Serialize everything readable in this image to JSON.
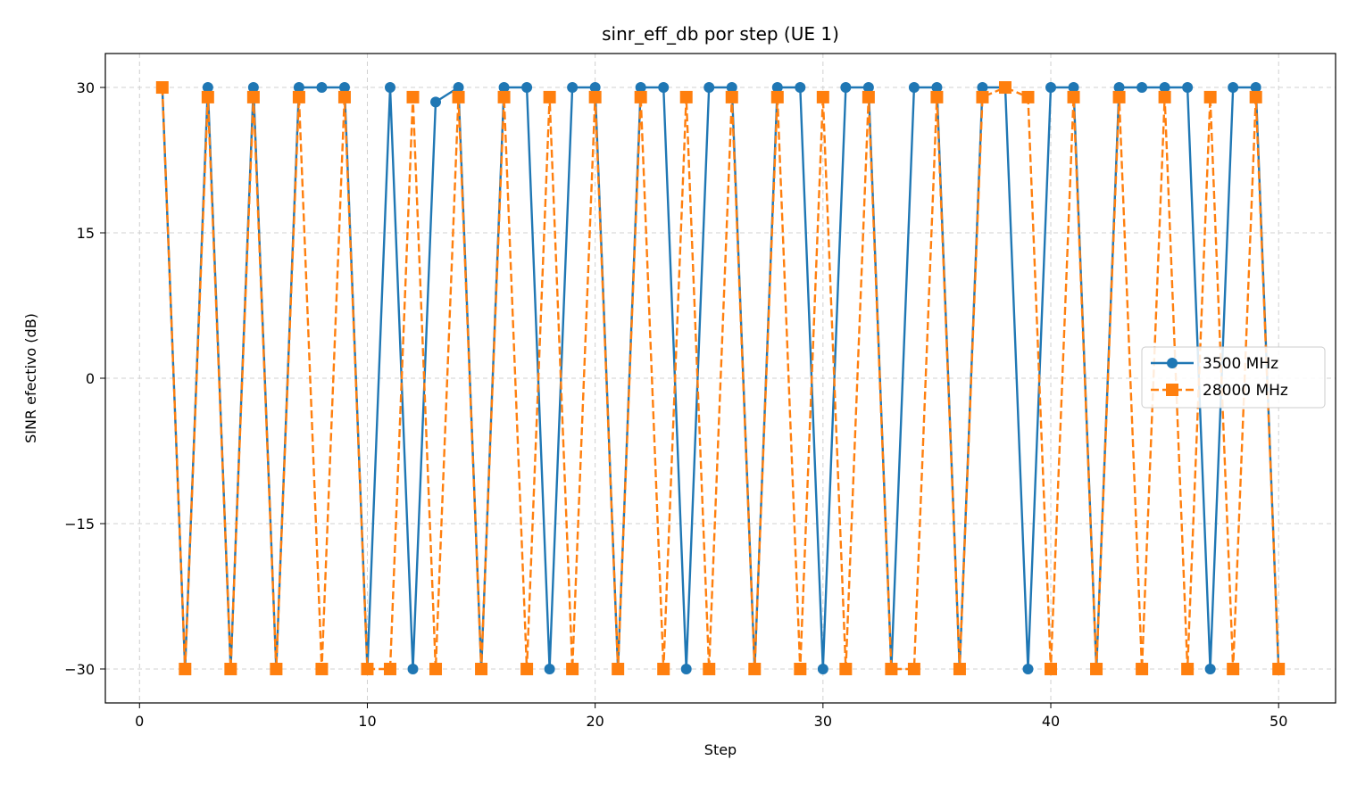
{
  "chart_data": {
    "type": "line",
    "title": "sinr_eff_db por step (UE 1)",
    "xlabel": "Step",
    "ylabel": "SINR efectivo (dB)",
    "xlim": [
      -1.5,
      52.5
    ],
    "ylim": [
      -33.5,
      33.5
    ],
    "xticks": [
      0,
      10,
      20,
      30,
      40,
      50
    ],
    "yticks": [
      -30,
      -15,
      0,
      15,
      30
    ],
    "ytick_labels": [
      "−30",
      "−15",
      "0",
      "15",
      "30"
    ],
    "grid": true,
    "legend_position": "right",
    "x": [
      1,
      2,
      3,
      4,
      5,
      6,
      7,
      8,
      9,
      10,
      11,
      12,
      13,
      14,
      15,
      16,
      17,
      18,
      19,
      20,
      21,
      22,
      23,
      24,
      25,
      26,
      27,
      28,
      29,
      30,
      31,
      32,
      33,
      34,
      35,
      36,
      37,
      38,
      39,
      40,
      41,
      42,
      43,
      44,
      45,
      46,
      47,
      48,
      49,
      50
    ],
    "series": [
      {
        "name": "3500 MHz",
        "color": "#1f77b4",
        "marker": "circle",
        "linestyle": "solid",
        "values": [
          30,
          -30,
          30,
          -30,
          30,
          -30,
          30,
          30,
          30,
          -30,
          30,
          -30,
          28.5,
          30,
          -30,
          30,
          30,
          -30,
          30,
          30,
          -30,
          30,
          30,
          -30,
          30,
          30,
          -30,
          30,
          30,
          -30,
          30,
          30,
          -30,
          30,
          30,
          -30,
          30,
          30,
          -30,
          30,
          30,
          -30,
          30,
          30,
          30,
          30,
          -30,
          30,
          30,
          -30
        ]
      },
      {
        "name": "28000 MHz",
        "color": "#ff7f0e",
        "marker": "square",
        "linestyle": "dashed",
        "values": [
          30,
          -30,
          29,
          -30,
          29,
          -30,
          29,
          -30,
          29,
          -30,
          -30,
          29,
          -30,
          29,
          -30,
          29,
          -30,
          29,
          -30,
          29,
          -30,
          29,
          -30,
          29,
          -30,
          29,
          -30,
          29,
          -30,
          29,
          -30,
          29,
          -30,
          -30,
          29,
          -30,
          29,
          30,
          29,
          -30,
          29,
          -30,
          29,
          -30,
          29,
          -30,
          29,
          -30,
          29,
          -30
        ]
      }
    ]
  }
}
